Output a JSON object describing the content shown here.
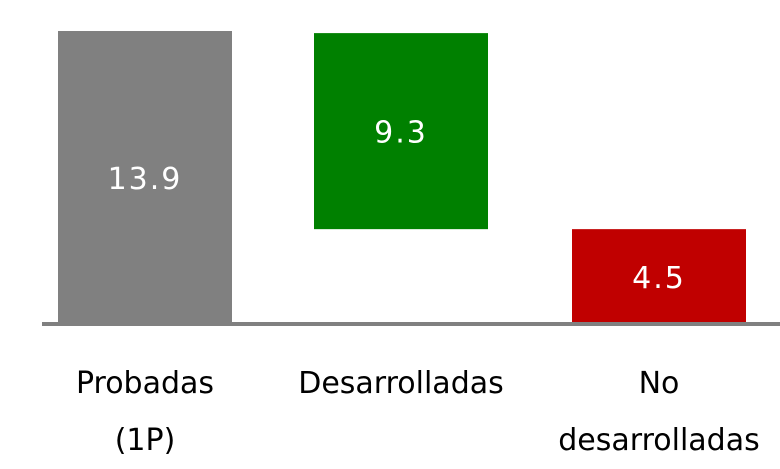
{
  "chart_data": {
    "type": "waterfall",
    "categories": [
      "Probadas\n(1P)",
      "Desarrolladas",
      "No\ndesarrolladas"
    ],
    "values": [
      13.9,
      9.3,
      4.5
    ],
    "colors": [
      "#808080",
      "#008000",
      "#c00000"
    ]
  }
}
